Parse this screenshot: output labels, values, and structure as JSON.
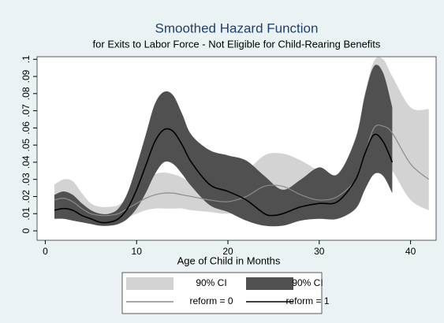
{
  "chart_data": {
    "type": "line",
    "title": "Smoothed Hazard Function",
    "subtitle": "for Exits to Labor Force - Not Eligible for Child-Rearing Benefits",
    "x_label": "Age of Child in Months",
    "xlim": [
      -0.9,
      42.8
    ],
    "xticks": [
      0,
      10,
      20,
      30,
      40
    ],
    "ylim": [
      -0.0055,
      0.1015
    ],
    "yticks": [
      0,
      {
        "value": 0.01,
        "label": ".01"
      },
      {
        "value": 0.02,
        "label": ".02"
      },
      {
        "value": 0.03,
        "label": ".03"
      },
      {
        "value": 0.04,
        "label": ".04"
      },
      {
        "value": 0.05,
        "label": ".05"
      },
      {
        "value": 0.06,
        "label": ".06"
      },
      {
        "value": 0.07,
        "label": ".07"
      },
      {
        "value": 0.08,
        "label": ".08"
      },
      {
        "value": 0.09,
        "label": ".09"
      },
      {
        "value": 0.1,
        "label": ".1"
      }
    ],
    "series": [
      {
        "name": "90% CI",
        "kind": "band",
        "color": "#d3d3d3",
        "x": [
          1,
          2,
          3,
          4,
          5,
          6,
          7,
          8,
          9,
          10,
          11,
          12,
          13,
          14,
          15,
          16,
          18,
          20,
          22,
          24,
          26,
          28,
          30,
          32,
          34,
          35,
          36,
          37,
          38,
          40,
          42
        ],
        "upper": [
          0.027,
          0.03,
          0.029,
          0.022,
          0.016,
          0.014,
          0.014,
          0.015,
          0.019,
          0.024,
          0.029,
          0.033,
          0.034,
          0.033,
          0.031,
          0.028,
          0.024,
          0.024,
          0.034,
          0.044,
          0.045,
          0.041,
          0.035,
          0.032,
          0.055,
          0.08,
          0.099,
          0.1,
          0.09,
          0.072,
          0.071
        ],
        "lower": [
          0.008,
          0.008,
          0.007,
          0.006,
          0.005,
          0.004,
          0.004,
          0.006,
          0.008,
          0.01,
          0.012,
          0.013,
          0.013,
          0.013,
          0.013,
          0.012,
          0.011,
          0.01,
          0.012,
          0.013,
          0.013,
          0.01,
          0.009,
          0.01,
          0.016,
          0.027,
          0.037,
          0.04,
          0.035,
          0.018,
          0.012
        ]
      },
      {
        "name": "90% CI",
        "kind": "band",
        "color": "#505050",
        "x": [
          1,
          2,
          3,
          4,
          5,
          6,
          7,
          8,
          9,
          10,
          11,
          12,
          13,
          14,
          15,
          16,
          18,
          20,
          22,
          24,
          26,
          28,
          30,
          32,
          34,
          35,
          36,
          37,
          38
        ],
        "upper": [
          0.021,
          0.023,
          0.021,
          0.016,
          0.012,
          0.01,
          0.01,
          0.013,
          0.022,
          0.038,
          0.056,
          0.074,
          0.081,
          0.079,
          0.068,
          0.056,
          0.047,
          0.044,
          0.041,
          0.032,
          0.024,
          0.03,
          0.037,
          0.033,
          0.054,
          0.079,
          0.096,
          0.092,
          0.072
        ],
        "lower": [
          0.007,
          0.007,
          0.006,
          0.005,
          0.004,
          0.003,
          0.003,
          0.004,
          0.007,
          0.013,
          0.022,
          0.033,
          0.04,
          0.039,
          0.033,
          0.026,
          0.015,
          0.011,
          0.006,
          0.003,
          0.003,
          0.006,
          0.007,
          0.007,
          0.013,
          0.024,
          0.033,
          0.032,
          0.022
        ]
      },
      {
        "name": "reform = 0",
        "kind": "line",
        "color": "#8c8c8c",
        "x": [
          1,
          2,
          3,
          4,
          5,
          6,
          7,
          8,
          9,
          10,
          11,
          12,
          13,
          14,
          15,
          16,
          18,
          20,
          22,
          24,
          26,
          28,
          30,
          32,
          34,
          35,
          36,
          37,
          38,
          40,
          42
        ],
        "values": [
          0.018,
          0.019,
          0.017,
          0.013,
          0.01,
          0.009,
          0.009,
          0.01,
          0.013,
          0.016,
          0.019,
          0.021,
          0.022,
          0.022,
          0.021,
          0.02,
          0.018,
          0.017,
          0.02,
          0.026,
          0.026,
          0.021,
          0.018,
          0.02,
          0.03,
          0.045,
          0.06,
          0.061,
          0.057,
          0.039,
          0.03
        ]
      },
      {
        "name": "reform = 1",
        "kind": "line",
        "color": "#000000",
        "x": [
          1,
          2,
          3,
          4,
          5,
          6,
          7,
          8,
          9,
          10,
          11,
          12,
          13,
          14,
          15,
          16,
          18,
          20,
          22,
          24,
          25,
          26,
          28,
          30,
          32,
          34,
          35,
          36,
          37,
          38
        ],
        "values": [
          0.012,
          0.013,
          0.012,
          0.009,
          0.007,
          0.005,
          0.005,
          0.007,
          0.013,
          0.024,
          0.038,
          0.052,
          0.059,
          0.058,
          0.05,
          0.04,
          0.027,
          0.023,
          0.018,
          0.01,
          0.009,
          0.01,
          0.014,
          0.016,
          0.017,
          0.03,
          0.045,
          0.056,
          0.052,
          0.04
        ]
      }
    ]
  }
}
